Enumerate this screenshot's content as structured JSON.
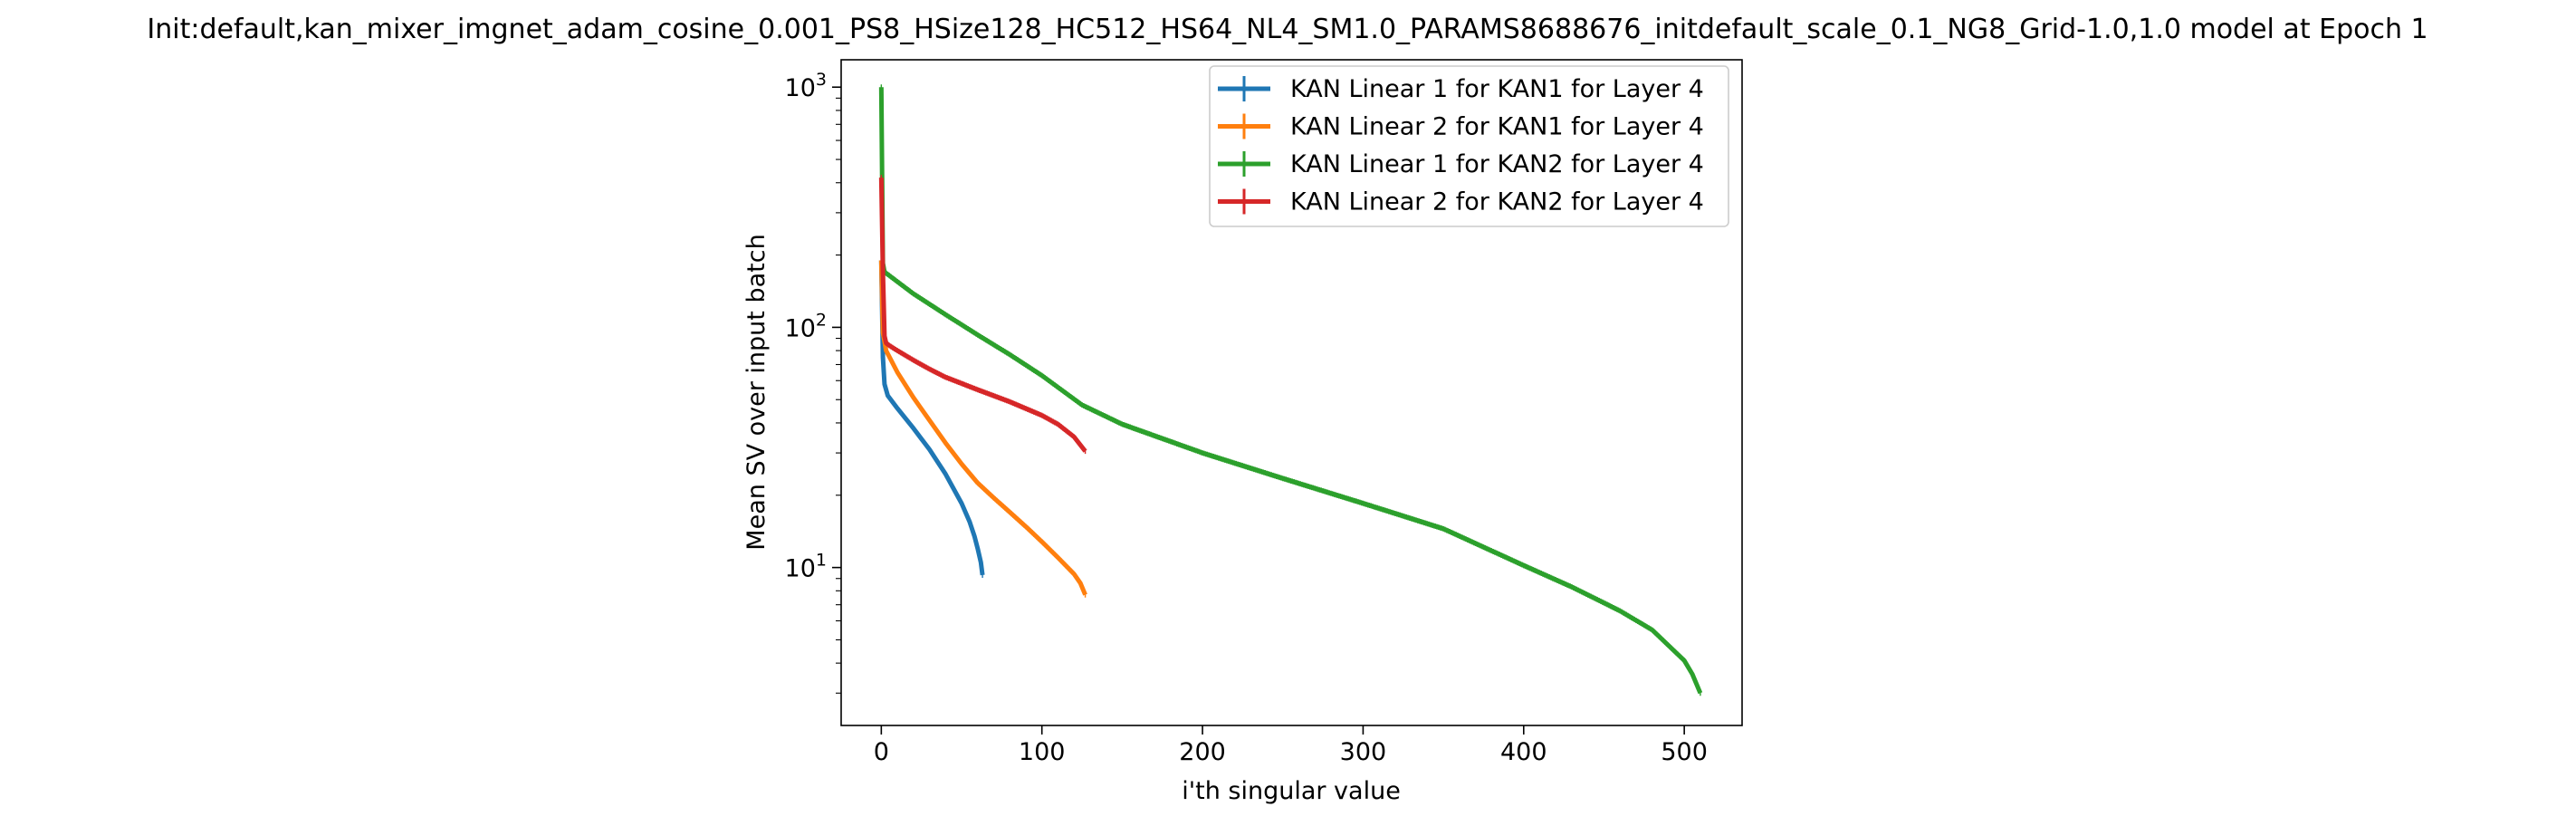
{
  "chart_data": {
    "type": "line",
    "title": "Init:default,kan_mixer_imgnet_adam_cosine_0.001_PS8_HSize128_HC512_HS64_NL4_SM1.0_PARAMS8688676_initdefault_scale_0.1_NG8_Grid-1.0,1.0 model at Epoch 1",
    "xlabel": "i'th singular value",
    "ylabel": "Mean SV over input batch",
    "yscale": "log",
    "xlim": [
      -25,
      536
    ],
    "ylim": [
      2.2,
      1300
    ],
    "x_ticks": [
      0,
      100,
      200,
      300,
      400,
      500
    ],
    "y_ticks": [
      10,
      100,
      1000
    ],
    "y_tick_labels": [
      {
        "base": "10",
        "exp": "1"
      },
      {
        "base": "10",
        "exp": "2"
      },
      {
        "base": "10",
        "exp": "3"
      }
    ],
    "grid": false,
    "error_bars": true,
    "legend_placement": "top-right",
    "series": [
      {
        "name": "KAN Linear 1 for KAN1 for Layer 4",
        "color": "#1f77b4",
        "points": [
          [
            0,
            190
          ],
          [
            1,
            75
          ],
          [
            2,
            58
          ],
          [
            4,
            52
          ],
          [
            10,
            46
          ],
          [
            20,
            38
          ],
          [
            30,
            31
          ],
          [
            40,
            24.5
          ],
          [
            50,
            18.5
          ],
          [
            55,
            15.5
          ],
          [
            58,
            13.5
          ],
          [
            60,
            12
          ],
          [
            62,
            10.5
          ],
          [
            63,
            9.3
          ]
        ]
      },
      {
        "name": "KAN Linear 2 for KAN1 for Layer 4",
        "color": "#ff7f0e",
        "points": [
          [
            0,
            190
          ],
          [
            1,
            95
          ],
          [
            3,
            80
          ],
          [
            10,
            65
          ],
          [
            20,
            51
          ],
          [
            30,
            41
          ],
          [
            40,
            33
          ],
          [
            50,
            27
          ],
          [
            60,
            22.5
          ],
          [
            70,
            19.5
          ],
          [
            80,
            17
          ],
          [
            90,
            14.8
          ],
          [
            100,
            12.8
          ],
          [
            110,
            11
          ],
          [
            120,
            9.4
          ],
          [
            124,
            8.6
          ],
          [
            127,
            7.7
          ]
        ]
      },
      {
        "name": "KAN Linear 1 for KAN2 for Layer 4",
        "color": "#2ca02c",
        "points": [
          [
            0,
            1000
          ],
          [
            1,
            185
          ],
          [
            2,
            170
          ],
          [
            10,
            155
          ],
          [
            20,
            138
          ],
          [
            40,
            113
          ],
          [
            60,
            93
          ],
          [
            80,
            77
          ],
          [
            100,
            63
          ],
          [
            125,
            47.5
          ],
          [
            150,
            39.5
          ],
          [
            200,
            30
          ],
          [
            250,
            23.5
          ],
          [
            300,
            18.5
          ],
          [
            350,
            14.5
          ],
          [
            400,
            10.2
          ],
          [
            430,
            8.3
          ],
          [
            460,
            6.6
          ],
          [
            480,
            5.5
          ],
          [
            500,
            4.1
          ],
          [
            505,
            3.6
          ],
          [
            510,
            3.0
          ]
        ]
      },
      {
        "name": "KAN Linear 2 for KAN2 for Layer 4",
        "color": "#d62728",
        "points": [
          [
            0,
            420
          ],
          [
            1,
            170
          ],
          [
            2,
            92
          ],
          [
            3,
            86
          ],
          [
            5,
            84
          ],
          [
            10,
            80
          ],
          [
            20,
            73
          ],
          [
            30,
            67
          ],
          [
            40,
            62
          ],
          [
            60,
            55
          ],
          [
            80,
            49
          ],
          [
            100,
            43
          ],
          [
            110,
            39.5
          ],
          [
            120,
            35
          ],
          [
            127,
            30.5
          ]
        ]
      }
    ]
  }
}
